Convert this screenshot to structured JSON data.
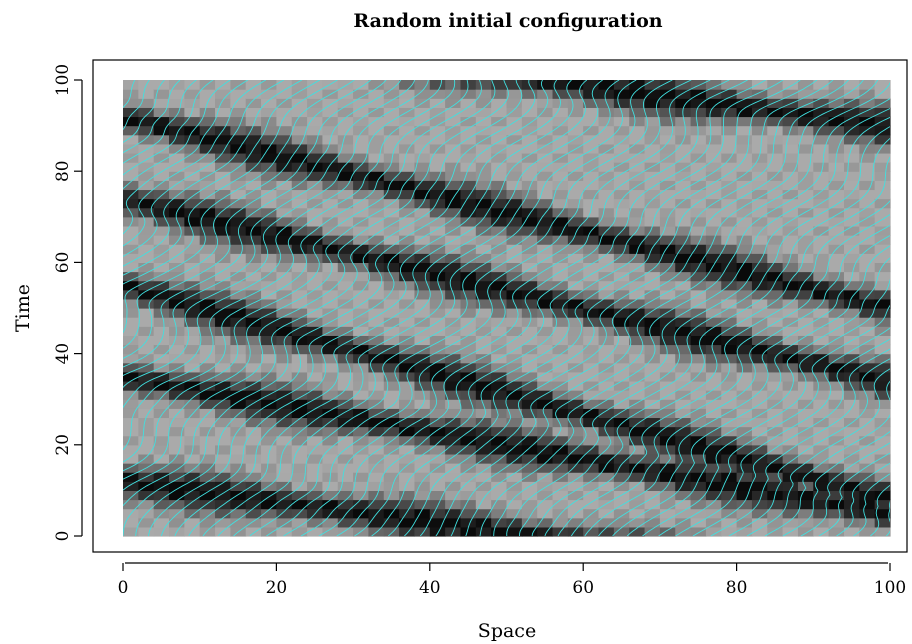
{
  "chart_data": {
    "type": "heatmap",
    "title": "Random initial configuration",
    "xlabel": "Space",
    "ylabel": "Time",
    "xlim": [
      0,
      100
    ],
    "ylim": [
      0,
      100
    ],
    "x_ticks": [
      0,
      20,
      40,
      60,
      80,
      100
    ],
    "y_ticks": [
      0,
      20,
      40,
      60,
      80,
      100
    ],
    "grid": false,
    "background_cmap": "grayscale (light gray to black)",
    "overlay": {
      "type": "line",
      "description_color": "#40e0e0",
      "spacing": 2
    },
    "dark_bands": [
      {
        "x0": 0,
        "y0": 55,
        "slope": -0.47
      },
      {
        "x0": 0,
        "y0": 92,
        "slope": -0.42
      },
      {
        "x0": 0,
        "y0": 12,
        "slope": -0.22
      },
      {
        "x0": 0,
        "y0": 74,
        "slope": -0.4
      },
      {
        "x0": 0,
        "y0": 35,
        "slope": -0.3
      }
    ]
  }
}
